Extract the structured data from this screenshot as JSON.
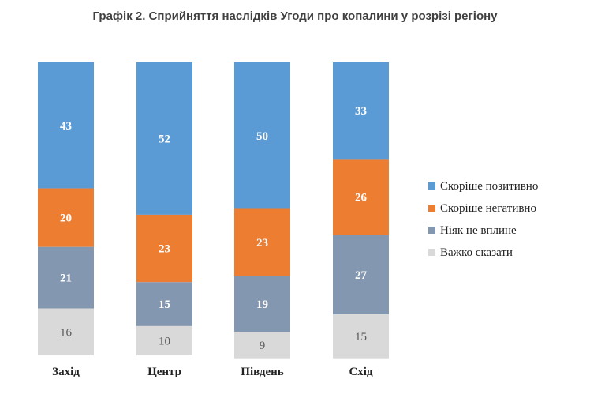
{
  "title": "Графік 2. Сприйняття наслідків Угоди про копалини у розрізі регіону",
  "chart_data": {
    "type": "bar",
    "stacked": true,
    "categories": [
      "Захід",
      "Центр",
      "Південь",
      "Схід"
    ],
    "series": [
      {
        "name": "Скоріше позитивно",
        "values": [
          43,
          52,
          50,
          33
        ],
        "color": "#5b9bd5"
      },
      {
        "name": "Скоріше негативно",
        "values": [
          20,
          23,
          23,
          26
        ],
        "color": "#ed7d31"
      },
      {
        "name": "Ніяк не вплине",
        "values": [
          21,
          15,
          19,
          27
        ],
        "color": "#8497b0"
      },
      {
        "name": "Важко сказати",
        "values": [
          16,
          10,
          9,
          15
        ],
        "color": "#d9d9d9"
      }
    ],
    "ylim": [
      0,
      100
    ],
    "legend_position": "right",
    "grid": false
  }
}
